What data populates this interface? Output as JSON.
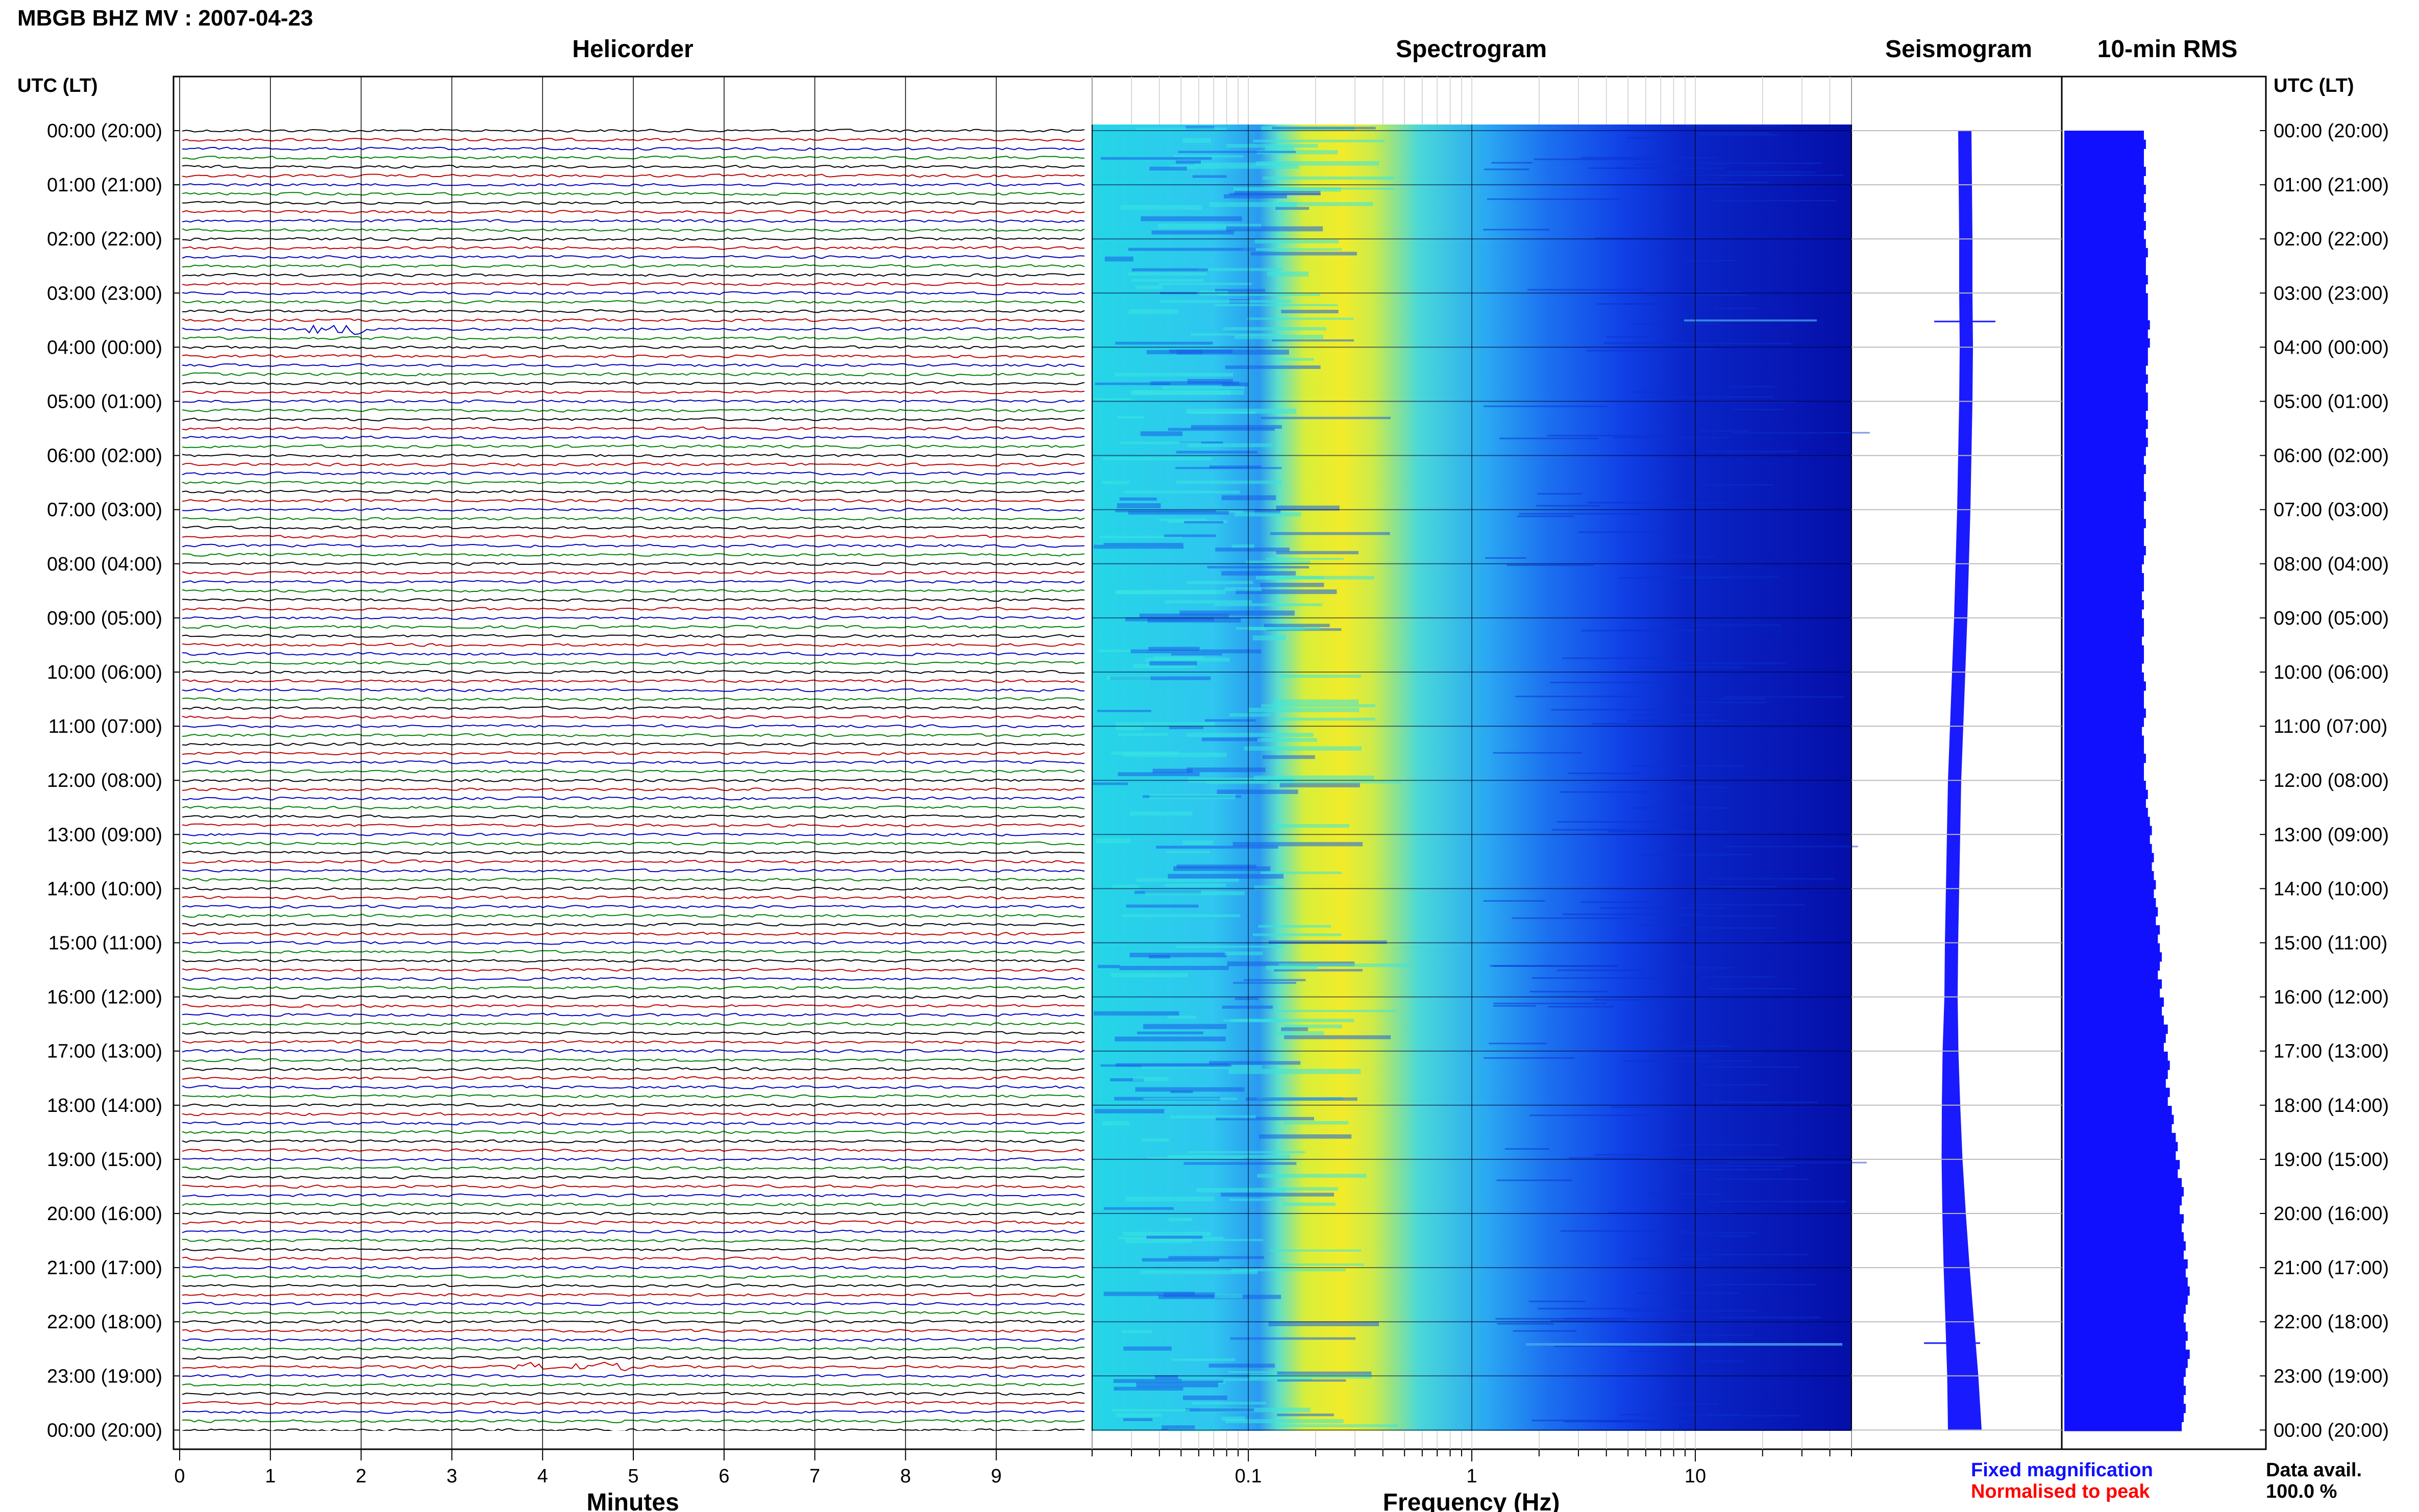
{
  "header": {
    "station_title": "MBGB BHZ MV : 2007-04-23"
  },
  "panels": {
    "helicorder": "Helicorder",
    "spectrogram": "Spectrogram",
    "seismogram": "Seismogram",
    "rms": "10-min RMS"
  },
  "axes": {
    "utc_header_left": "UTC (LT)",
    "utc_header_right": "UTC (LT)",
    "minutes_label": "Minutes",
    "frequency_label": "Frequency (Hz)"
  },
  "legend": {
    "fixed": "Fixed magnification",
    "fixed_color": "#1010ff",
    "normalised": "Normalised to peak",
    "normalised_color": "#ff0000"
  },
  "availability": {
    "label": "Data avail.",
    "value": "100.0 %"
  },
  "chart_data": {
    "type": "line",
    "time_labels": [
      "00:00 (20:00)",
      "01:00 (21:00)",
      "02:00 (22:00)",
      "03:00 (23:00)",
      "04:00 (00:00)",
      "05:00 (01:00)",
      "06:00 (02:00)",
      "07:00 (03:00)",
      "08:00 (04:00)",
      "09:00 (05:00)",
      "10:00 (06:00)",
      "11:00 (07:00)",
      "12:00 (08:00)",
      "13:00 (09:00)",
      "14:00 (10:00)",
      "15:00 (11:00)",
      "16:00 (12:00)",
      "17:00 (13:00)",
      "18:00 (14:00)",
      "19:00 (15:00)",
      "20:00 (16:00)",
      "21:00 (17:00)",
      "22:00 (18:00)",
      "23:00 (19:00)",
      "00:00 (20:00)"
    ],
    "minutes_ticks": [
      "0",
      "1",
      "2",
      "3",
      "4",
      "5",
      "6",
      "7",
      "8",
      "9"
    ],
    "frequency_ticks": [
      "0.1",
      "1",
      "10"
    ],
    "frequency_range_hz": [
      0.02,
      50
    ],
    "minutes_range": [
      0,
      10
    ],
    "helicorder_trace_colors": [
      "#000000",
      "#c00000",
      "#0000c0",
      "#008000"
    ],
    "traces_per_hour": 6,
    "rms_10min_relative": [
      0.4,
      0.41,
      0.4,
      0.4,
      0.41,
      0.4,
      0.41,
      0.4,
      0.41,
      0.4,
      0.41,
      0.4,
      0.41,
      0.42,
      0.41,
      0.41,
      0.42,
      0.41,
      0.42,
      0.42,
      0.42,
      0.43,
      0.42,
      0.43,
      0.42,
      0.42,
      0.41,
      0.42,
      0.41,
      0.42,
      0.42,
      0.41,
      0.42,
      0.41,
      0.42,
      0.41,
      0.4,
      0.41,
      0.4,
      0.4,
      0.41,
      0.4,
      0.4,
      0.41,
      0.4,
      0.4,
      0.41,
      0.4,
      0.39,
      0.4,
      0.4,
      0.39,
      0.4,
      0.39,
      0.4,
      0.4,
      0.39,
      0.4,
      0.4,
      0.39,
      0.4,
      0.41,
      0.4,
      0.4,
      0.41,
      0.4,
      0.39,
      0.4,
      0.4,
      0.41,
      0.4,
      0.4,
      0.41,
      0.42,
      0.41,
      0.42,
      0.43,
      0.44,
      0.43,
      0.44,
      0.45,
      0.44,
      0.45,
      0.46,
      0.45,
      0.46,
      0.47,
      0.46,
      0.48,
      0.47,
      0.48,
      0.49,
      0.48,
      0.47,
      0.49,
      0.48,
      0.5,
      0.49,
      0.5,
      0.52,
      0.51,
      0.5,
      0.52,
      0.53,
      0.52,
      0.51,
      0.53,
      0.52,
      0.54,
      0.55,
      0.54,
      0.56,
      0.57,
      0.56,
      0.58,
      0.57,
      0.59,
      0.6,
      0.59,
      0.58,
      0.6,
      0.59,
      0.6,
      0.61,
      0.6,
      0.62,
      0.61,
      0.62,
      0.63,
      0.62,
      0.61,
      0.6,
      0.61,
      0.62,
      0.61,
      0.63,
      0.62,
      0.61,
      0.6,
      0.61,
      0.6,
      0.61,
      0.6,
      0.59
    ]
  }
}
